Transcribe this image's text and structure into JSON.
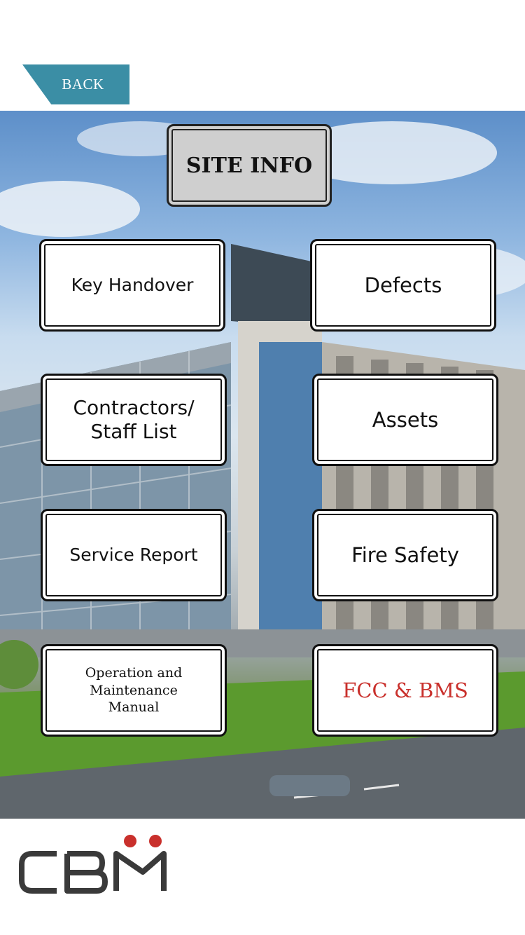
{
  "nav": {
    "back_label": "BACK"
  },
  "header": {
    "title": "SITE INFO"
  },
  "menu": {
    "key_handover": "Key Handover",
    "defects": "Defects",
    "contractors_line1": "Contractors/",
    "contractors_line2": "Staff List",
    "assets": "Assets",
    "service_report": "Service Report",
    "fire_safety": "Fire Safety",
    "om_line1": "Operation and",
    "om_line2": "Maintenance",
    "om_line3": "Manual",
    "fcc_bms": "FCC & BMS"
  },
  "colors": {
    "back_button": "#3b8ea5",
    "accent_red": "#c9302c",
    "logo_dark": "#3a3a3a"
  },
  "logo": {
    "icon": "cbm-logo"
  }
}
